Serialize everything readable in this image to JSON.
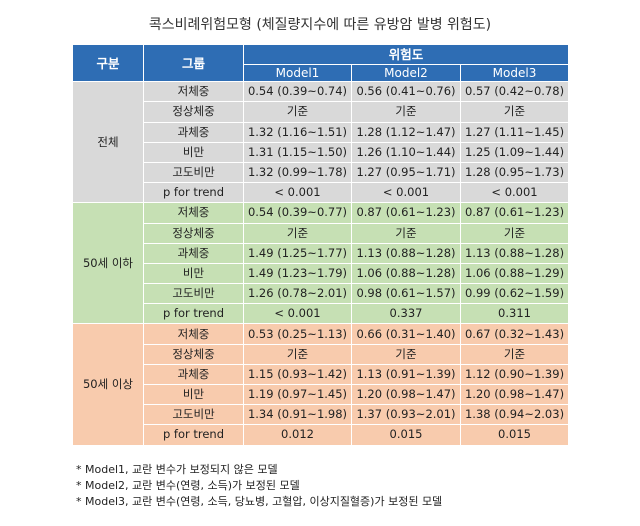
{
  "title": "콕스비례위험모형 (체질량지수에 따른 유방암 발병 위험도)",
  "header": {
    "category": "구분",
    "group": "그룹",
    "risk": "위험도",
    "models": [
      "Model1",
      "Model2",
      "Model3"
    ]
  },
  "sections": [
    {
      "label": "전체",
      "rows": [
        {
          "group": "저체중",
          "values": [
            "0.54 (0.39~0.74)",
            "0.56 (0.41~0.76)",
            "0.57 (0.42~0.78)"
          ]
        },
        {
          "group": "정상체중",
          "values": [
            "기준",
            "기준",
            "기준"
          ]
        },
        {
          "group": "과체중",
          "values": [
            "1.32 (1.16~1.51)",
            "1.28 (1.12~1.47)",
            "1.27 (1.11~1.45)"
          ]
        },
        {
          "group": "비만",
          "values": [
            "1.31 (1.15~1.50)",
            "1.26 (1.10~1.44)",
            "1.25 (1.09~1.44)"
          ]
        },
        {
          "group": "고도비만",
          "values": [
            "1.32 (0.99~1.78)",
            "1.27 (0.95~1.71)",
            "1.28 (0.95~1.73)"
          ]
        },
        {
          "group": "p for trend",
          "values": [
            "< 0.001",
            "< 0.001",
            "< 0.001"
          ]
        }
      ]
    },
    {
      "label": "50세 이하",
      "rows": [
        {
          "group": "저체중",
          "values": [
            "0.54 (0.39~0.77)",
            "0.87 (0.61~1.23)",
            "0.87 (0.61~1.23)"
          ]
        },
        {
          "group": "정상체중",
          "values": [
            "기준",
            "기준",
            "기준"
          ]
        },
        {
          "group": "과체중",
          "values": [
            "1.49 (1.25~1.77)",
            "1.13 (0.88~1.28)",
            "1.13 (0.88~1.28)"
          ]
        },
        {
          "group": "비만",
          "values": [
            "1.49 (1.23~1.79)",
            "1.06 (0.88~1.28)",
            "1.06 (0.88~1.29)"
          ]
        },
        {
          "group": "고도비만",
          "values": [
            "1.26 (0.78~2.01)",
            "0.98 (0.61~1.57)",
            "0.99 (0.62~1.59)"
          ]
        },
        {
          "group": "p for trend",
          "values": [
            "< 0.001",
            "0.337",
            "0.311"
          ]
        }
      ]
    },
    {
      "label": "50세 이상",
      "rows": [
        {
          "group": "저체중",
          "values": [
            "0.53 (0.25~1.13)",
            "0.66 (0.31~1.40)",
            "0.67 (0.32~1.43)"
          ]
        },
        {
          "group": "정상체중",
          "values": [
            "기준",
            "기준",
            "기준"
          ]
        },
        {
          "group": "과체중",
          "values": [
            "1.15 (0.93~1.42)",
            "1.13 (0.91~1.39)",
            "1.12 (0.90~1.39)"
          ]
        },
        {
          "group": "비만",
          "values": [
            "1.19 (0.97~1.45)",
            "1.20 (0.98~1.47)",
            "1.20 (0.98~1.47)"
          ]
        },
        {
          "group": "고도비만",
          "values": [
            "1.34 (0.91~1.98)",
            "1.37 (0.93~2.01)",
            "1.38 (0.94~2.03)"
          ]
        },
        {
          "group": "p for trend",
          "values": [
            "0.012",
            "0.015",
            "0.015"
          ]
        }
      ]
    }
  ],
  "notes": [
    "* Model1, 교란 변수가 보정되지 않은 모델",
    "* Model2, 교란 변수(연령, 소득)가 보정된 모델",
    "* Model3, 교란 변수(연령, 소득, 당뇨병, 고혈압, 이상지질혈증)가 보정된 모델"
  ]
}
